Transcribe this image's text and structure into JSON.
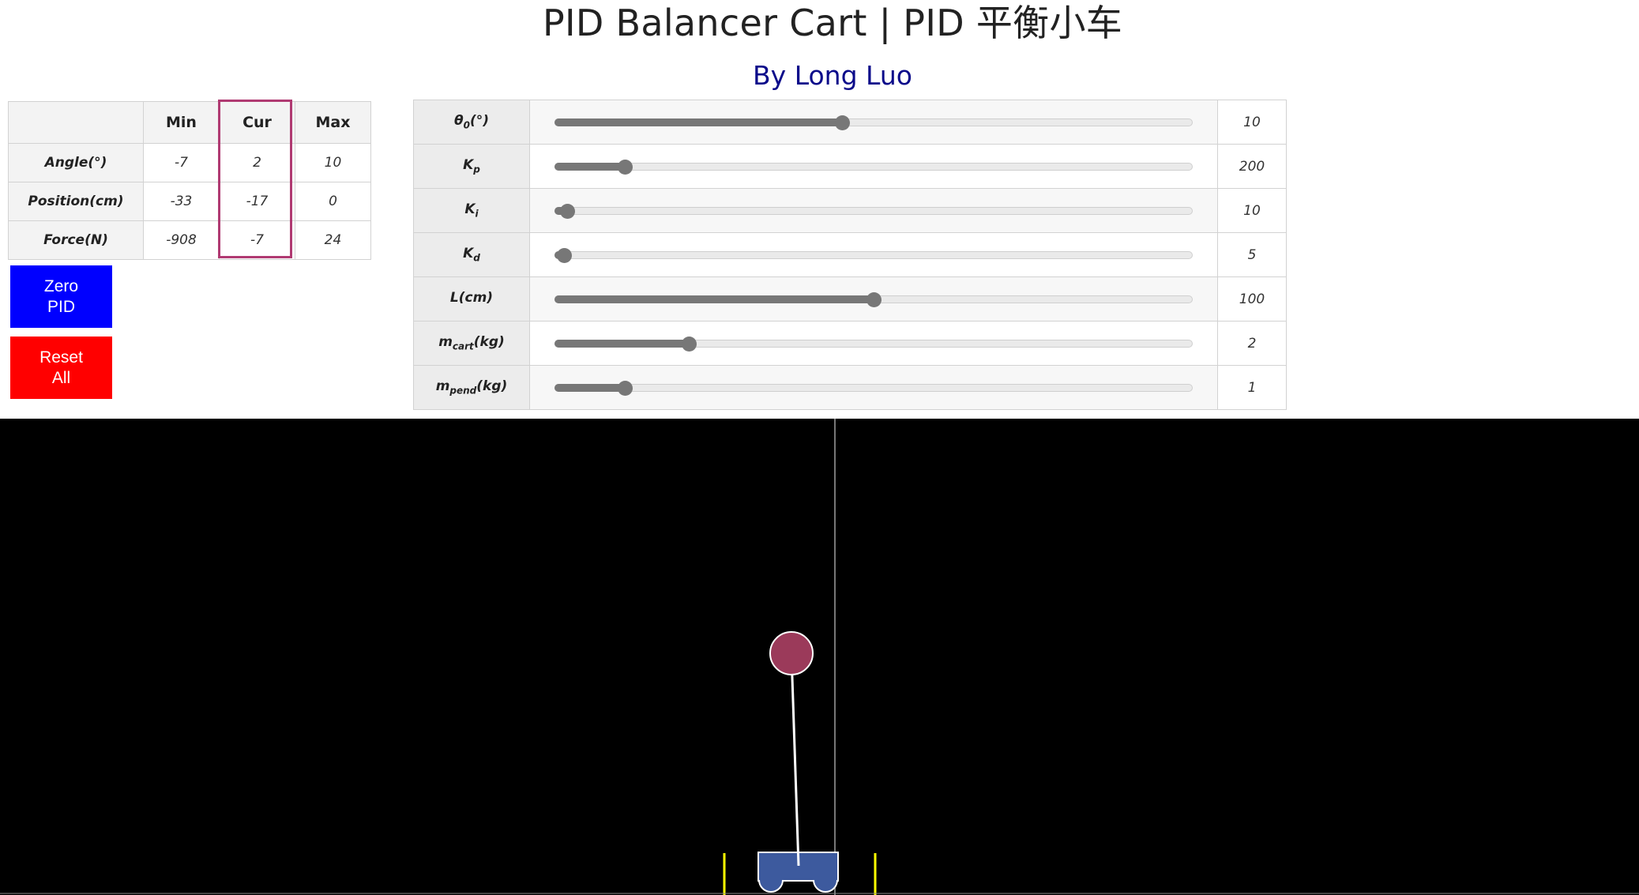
{
  "header": {
    "title": "PID Balancer Cart | PID 平衡小车",
    "subtitle": "By Long Luo"
  },
  "stats": {
    "columns": [
      "Min",
      "Cur",
      "Max"
    ],
    "rows": [
      {
        "label": "Angle(°)",
        "min": "-7",
        "cur": "2",
        "max": "10"
      },
      {
        "label": "Position(cm)",
        "min": "-33",
        "cur": "-17",
        "max": "0"
      },
      {
        "label": "Force(N)",
        "min": "-908",
        "cur": "-7",
        "max": "24"
      }
    ]
  },
  "buttons": {
    "zero_pid": "Zero PID",
    "reset_all": "Reset All"
  },
  "params": [
    {
      "symbol": "θ",
      "sub": "0",
      "unit": "(°)",
      "value": "10",
      "fraction": 0.45
    },
    {
      "symbol": "K",
      "sub": "p",
      "unit": "",
      "value": "200",
      "fraction": 0.11
    },
    {
      "symbol": "K",
      "sub": "i",
      "unit": "",
      "value": "10",
      "fraction": 0.02
    },
    {
      "symbol": "K",
      "sub": "d",
      "unit": "",
      "value": "5",
      "fraction": 0.015
    },
    {
      "symbol": "L",
      "sub": "",
      "unit": "(cm)",
      "value": "100",
      "fraction": 0.5
    },
    {
      "symbol": "m",
      "sub": "cart",
      "unit": "(kg)",
      "value": "2",
      "fraction": 0.21
    },
    {
      "symbol": "m",
      "sub": "pend",
      "unit": "(kg)",
      "value": "1",
      "fraction": 0.11
    }
  ],
  "colors": {
    "cart": "#3d5a9e",
    "bob": "#9b3a5a",
    "limit": "#ffff00",
    "cur_highlight": "#b03a72",
    "zero_btn": "#0000ff",
    "reset_btn": "#ff0000"
  }
}
